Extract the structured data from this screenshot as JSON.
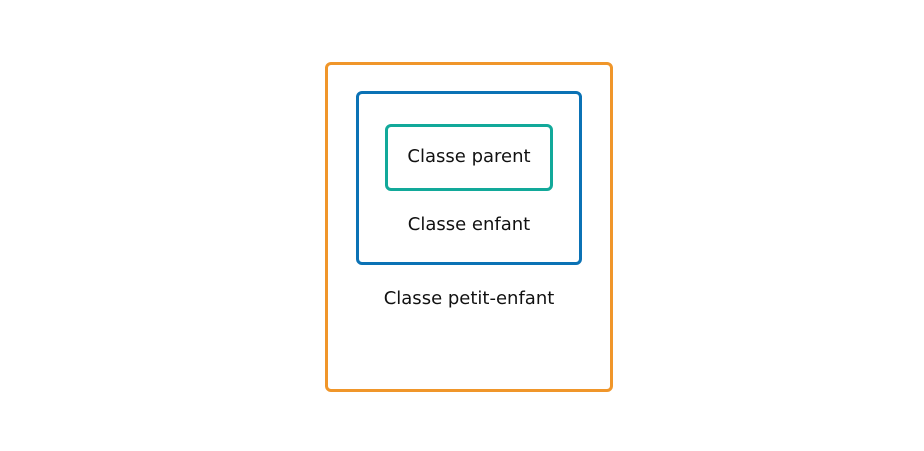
{
  "diagram": {
    "boxes": {
      "outer": {
        "label": "Classe petit-enfant",
        "border_color": "#f0962a"
      },
      "middle": {
        "label": "Classe enfant",
        "border_color": "#0b72b5"
      },
      "inner": {
        "label": "Classe parent",
        "border_color": "#12a99a"
      }
    }
  }
}
